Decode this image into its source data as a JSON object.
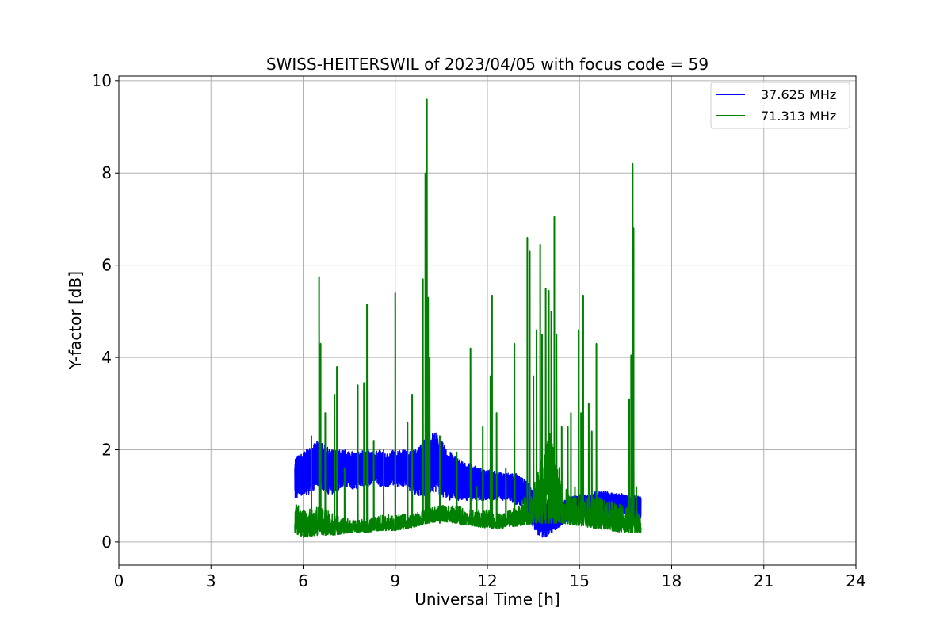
{
  "chart_data": {
    "type": "line",
    "title": "SWISS-HEITERSWIL of 2023/04/05 with focus code = 59",
    "xlabel": "Universal Time [h]",
    "ylabel": "Y-factor [dB]",
    "xlim": [
      0,
      24
    ],
    "ylim": [
      -0.5,
      10.1
    ],
    "xticks": [
      0,
      3,
      6,
      9,
      12,
      15,
      18,
      21,
      24
    ],
    "yticks": [
      0,
      2,
      4,
      6,
      8,
      10
    ],
    "grid": true,
    "legend_position": "top-right",
    "series": [
      {
        "name": "37.625 MHz",
        "color": "#0000ff",
        "x": [
          5.73,
          5.9,
          6.1,
          6.3,
          6.5,
          6.7,
          6.9,
          7.1,
          7.3,
          7.5,
          7.7,
          7.9,
          8.1,
          8.3,
          8.5,
          8.7,
          8.9,
          9.1,
          9.3,
          9.5,
          9.7,
          9.9,
          10.1,
          10.3,
          10.5,
          10.7,
          10.9,
          11.1,
          11.3,
          11.5,
          11.7,
          11.9,
          12.1,
          12.3,
          12.5,
          12.7,
          12.9,
          13.1,
          13.3,
          13.5,
          13.7,
          13.9,
          14.1,
          14.3,
          14.5,
          14.7,
          14.9,
          15.1,
          15.3,
          15.5,
          15.7,
          15.9,
          16.1,
          16.3,
          16.5,
          16.7,
          16.9,
          17.0
        ],
        "low": [
          0.9,
          1.0,
          1.0,
          1.1,
          1.2,
          1.1,
          1.0,
          1.1,
          1.2,
          1.2,
          1.1,
          1.2,
          1.2,
          1.3,
          1.2,
          1.2,
          1.2,
          1.2,
          1.2,
          1.1,
          1.0,
          1.0,
          1.0,
          1.1,
          1.0,
          0.9,
          0.9,
          0.9,
          0.9,
          0.9,
          0.9,
          0.9,
          0.9,
          0.9,
          0.9,
          0.9,
          0.8,
          0.8,
          0.7,
          0.3,
          0.1,
          0.1,
          0.2,
          0.3,
          0.4,
          0.5,
          0.5,
          0.5,
          0.6,
          0.5,
          0.6,
          0.5,
          0.6,
          0.6,
          0.6,
          0.5,
          0.5,
          0.5
        ],
        "high": [
          1.85,
          1.9,
          2.0,
          2.1,
          2.2,
          2.1,
          2.0,
          2.0,
          2.0,
          2.0,
          1.95,
          2.0,
          2.0,
          1.95,
          2.0,
          1.9,
          2.0,
          2.0,
          2.0,
          2.0,
          2.0,
          2.2,
          2.3,
          2.4,
          2.2,
          2.0,
          1.9,
          1.8,
          1.7,
          1.7,
          1.6,
          1.6,
          1.6,
          1.5,
          1.5,
          1.5,
          1.5,
          1.4,
          1.3,
          1.1,
          1.0,
          0.95,
          0.9,
          0.9,
          0.9,
          1.0,
          1.0,
          1.05,
          1.0,
          1.1,
          1.1,
          1.1,
          1.05,
          1.05,
          1.05,
          1.0,
          1.0,
          1.0
        ]
      },
      {
        "name": "71.313 MHz",
        "color": "#008000",
        "baseline_x": [
          5.73,
          6.0,
          6.5,
          7.0,
          7.5,
          8.0,
          8.5,
          9.0,
          9.5,
          10.0,
          10.5,
          11.0,
          11.5,
          12.0,
          12.5,
          13.0,
          13.5,
          14.0,
          14.5,
          15.0,
          15.5,
          16.0,
          16.5,
          17.0
        ],
        "baseline_low": [
          0.2,
          0.1,
          0.15,
          0.15,
          0.2,
          0.2,
          0.25,
          0.25,
          0.3,
          0.4,
          0.45,
          0.4,
          0.35,
          0.3,
          0.3,
          0.35,
          0.4,
          0.5,
          0.4,
          0.35,
          0.3,
          0.25,
          0.2,
          0.2
        ],
        "baseline_high": [
          0.9,
          0.7,
          0.8,
          0.6,
          0.5,
          0.5,
          0.6,
          0.6,
          0.6,
          0.7,
          0.8,
          0.8,
          0.7,
          0.7,
          0.6,
          0.8,
          1.2,
          2.5,
          1.2,
          0.9,
          1.0,
          0.9,
          0.8,
          0.7
        ],
        "spikes": [
          {
            "x": 6.27,
            "y": 2.3
          },
          {
            "x": 6.52,
            "y": 5.75
          },
          {
            "x": 6.57,
            "y": 4.3
          },
          {
            "x": 6.72,
            "y": 2.8
          },
          {
            "x": 7.02,
            "y": 3.2
          },
          {
            "x": 7.1,
            "y": 3.8
          },
          {
            "x": 7.35,
            "y": 1.6
          },
          {
            "x": 7.78,
            "y": 3.4
          },
          {
            "x": 7.98,
            "y": 3.45
          },
          {
            "x": 8.08,
            "y": 5.15
          },
          {
            "x": 8.3,
            "y": 2.2
          },
          {
            "x": 8.62,
            "y": 2.0
          },
          {
            "x": 9.0,
            "y": 5.4
          },
          {
            "x": 9.4,
            "y": 2.6
          },
          {
            "x": 9.55,
            "y": 3.2
          },
          {
            "x": 9.9,
            "y": 5.7
          },
          {
            "x": 9.98,
            "y": 8.0
          },
          {
            "x": 10.03,
            "y": 9.6
          },
          {
            "x": 10.07,
            "y": 5.3
          },
          {
            "x": 10.12,
            "y": 4.0
          },
          {
            "x": 10.45,
            "y": 2.3
          },
          {
            "x": 11.0,
            "y": 1.95
          },
          {
            "x": 11.45,
            "y": 4.2
          },
          {
            "x": 11.65,
            "y": 1.2
          },
          {
            "x": 11.85,
            "y": 2.5
          },
          {
            "x": 12.1,
            "y": 3.6
          },
          {
            "x": 12.15,
            "y": 5.35
          },
          {
            "x": 12.3,
            "y": 2.8
          },
          {
            "x": 12.6,
            "y": 1.6
          },
          {
            "x": 12.88,
            "y": 4.3
          },
          {
            "x": 13.3,
            "y": 6.6
          },
          {
            "x": 13.38,
            "y": 6.3
          },
          {
            "x": 13.5,
            "y": 3.6
          },
          {
            "x": 13.6,
            "y": 4.6
          },
          {
            "x": 13.72,
            "y": 6.45
          },
          {
            "x": 13.78,
            "y": 4.5
          },
          {
            "x": 13.9,
            "y": 5.5
          },
          {
            "x": 14.0,
            "y": 5.45
          },
          {
            "x": 14.08,
            "y": 5.0
          },
          {
            "x": 14.18,
            "y": 7.05
          },
          {
            "x": 14.25,
            "y": 4.5
          },
          {
            "x": 14.42,
            "y": 2.5
          },
          {
            "x": 14.62,
            "y": 2.5
          },
          {
            "x": 14.72,
            "y": 2.8
          },
          {
            "x": 14.85,
            "y": 1.2
          },
          {
            "x": 14.97,
            "y": 4.6
          },
          {
            "x": 15.05,
            "y": 2.8
          },
          {
            "x": 15.12,
            "y": 5.35
          },
          {
            "x": 15.3,
            "y": 3.0
          },
          {
            "x": 15.4,
            "y": 2.4
          },
          {
            "x": 15.55,
            "y": 4.3
          },
          {
            "x": 16.62,
            "y": 3.1
          },
          {
            "x": 16.68,
            "y": 4.05
          },
          {
            "x": 16.73,
            "y": 8.2
          },
          {
            "x": 16.76,
            "y": 6.8
          },
          {
            "x": 16.85,
            "y": 1.2
          }
        ]
      }
    ]
  }
}
